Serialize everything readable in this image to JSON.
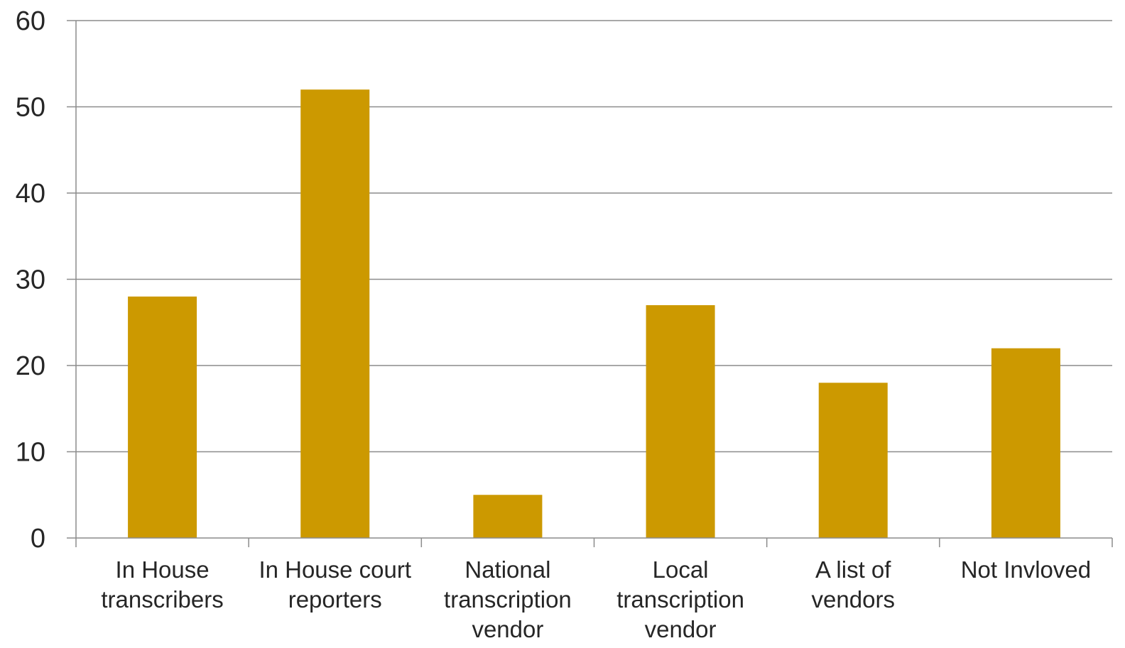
{
  "chart_data": {
    "type": "bar",
    "categories": [
      [
        "In House",
        "transcribers"
      ],
      [
        "In House court",
        "reporters"
      ],
      [
        "National",
        "transcription",
        "vendor"
      ],
      [
        "Local",
        "transcription",
        "vendor"
      ],
      [
        "A list of",
        "vendors"
      ],
      [
        "Not Invloved"
      ]
    ],
    "values": [
      28,
      52,
      5,
      27,
      18,
      22
    ],
    "ylim": [
      0,
      60
    ],
    "yticks": [
      "0",
      "10",
      "20",
      "30",
      "40",
      "50",
      "60"
    ],
    "title": "",
    "xlabel": "",
    "ylabel": "",
    "grid": true,
    "legend": "none",
    "bar_color": "#CC9900",
    "grid_color": "#8C8C8C",
    "axis_color": "#8C8C8C",
    "text_color": "#262626"
  }
}
